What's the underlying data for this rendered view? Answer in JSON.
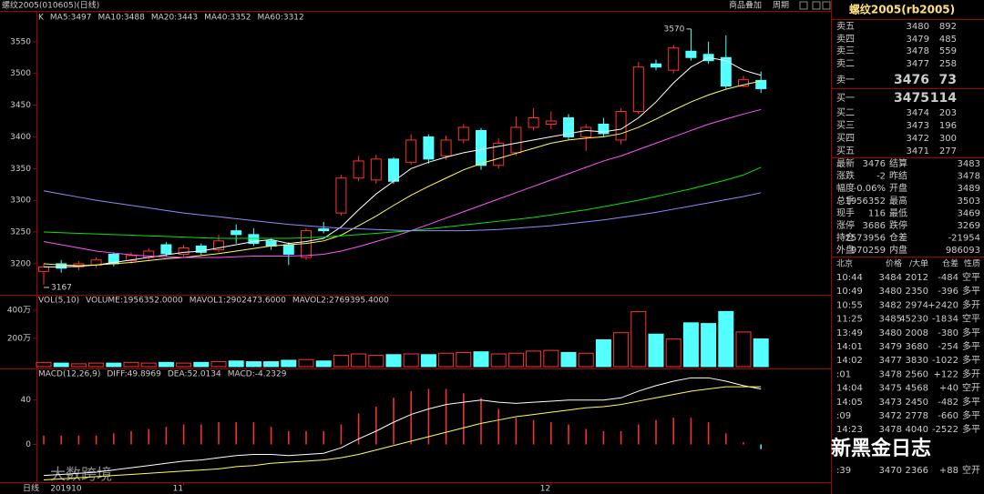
{
  "chart_data": [
    {
      "type": "candlestick",
      "label": "K",
      "categories": [
        null,
        "201910",
        null,
        null,
        null,
        null,
        null,
        null,
        "11",
        null,
        null,
        null,
        null,
        null,
        null,
        null,
        null,
        null,
        null,
        null,
        null,
        null,
        null,
        null,
        null,
        null,
        null,
        null,
        null,
        "12",
        null,
        null,
        null,
        null,
        null,
        null,
        null,
        null,
        null,
        null,
        null,
        null
      ],
      "open": [
        3188,
        3200,
        3195,
        3198,
        3215,
        3205,
        3210,
        3230,
        3215,
        3228,
        3222,
        3252,
        3246,
        3236,
        3230,
        3210,
        3255,
        3280,
        3335,
        3332,
        3365,
        3360,
        3400,
        3370,
        3395,
        3410,
        3355,
        3375,
        3415,
        3420,
        3430,
        3400,
        3420,
        3395,
        3440,
        3515,
        3505,
        3535,
        3530,
        3525,
        3480,
        3489
      ],
      "high": [
        3200,
        3206,
        3204,
        3210,
        3218,
        3218,
        3224,
        3234,
        3230,
        3232,
        3246,
        3262,
        3256,
        3240,
        3234,
        3256,
        3266,
        3340,
        3370,
        3372,
        3368,
        3404,
        3404,
        3402,
        3420,
        3414,
        3398,
        3432,
        3445,
        3440,
        3436,
        3420,
        3430,
        3445,
        3518,
        3522,
        3545,
        3570,
        3550,
        3560,
        3496,
        3503
      ],
      "low": [
        3167,
        3186,
        3190,
        3194,
        3196,
        3200,
        3206,
        3212,
        3210,
        3214,
        3218,
        3232,
        3228,
        3222,
        3198,
        3206,
        3248,
        3276,
        3330,
        3326,
        3326,
        3356,
        3358,
        3364,
        3390,
        3348,
        3350,
        3370,
        3410,
        3412,
        3396,
        3378,
        3400,
        3388,
        3436,
        3505,
        3500,
        3520,
        3515,
        3476,
        3478,
        3469
      ],
      "close": [
        3195,
        3193,
        3200,
        3206,
        3200,
        3213,
        3220,
        3216,
        3225,
        3218,
        3236,
        3246,
        3232,
        3228,
        3215,
        3252,
        3252,
        3335,
        3362,
        3365,
        3330,
        3395,
        3365,
        3395,
        3415,
        3355,
        3390,
        3415,
        3430,
        3425,
        3400,
        3415,
        3405,
        3440,
        3510,
        3510,
        3540,
        3525,
        3520,
        3480,
        3490,
        3476
      ],
      "up_color": "#ff3232",
      "down_color": "#54ffff",
      "ylim": [
        3154,
        3587
      ],
      "yticks": [
        3200,
        3250,
        3300,
        3350,
        3400,
        3450,
        3500,
        3550
      ],
      "series": [
        {
          "name": "MA5:3497",
          "color": "#ffffff",
          "values": [
            3195,
            3195,
            3196,
            3198,
            3202,
            3206,
            3210,
            3214,
            3218,
            3220,
            3225,
            3230,
            3235,
            3238,
            3232,
            3235,
            3240,
            3258,
            3285,
            3310,
            3330,
            3350,
            3360,
            3368,
            3375,
            3380,
            3385,
            3390,
            3395,
            3400,
            3405,
            3410,
            3408,
            3412,
            3430,
            3455,
            3485,
            3510,
            3525,
            3520,
            3505,
            3497
          ]
        },
        {
          "name": "MA10:3488",
          "color": "#ffff54",
          "values": [
            3200,
            3198,
            3197,
            3198,
            3200,
            3202,
            3205,
            3208,
            3210,
            3213,
            3216,
            3220,
            3224,
            3228,
            3230,
            3232,
            3236,
            3245,
            3260,
            3275,
            3292,
            3308,
            3322,
            3335,
            3348,
            3358,
            3366,
            3374,
            3382,
            3390,
            3395,
            3398,
            3400,
            3405,
            3415,
            3428,
            3442,
            3455,
            3466,
            3475,
            3482,
            3488
          ]
        },
        {
          "name": "MA20:3443",
          "color": "#ff54ff",
          "values": [
            3235,
            3230,
            3225,
            3220,
            3217,
            3214,
            3212,
            3211,
            3210,
            3210,
            3210,
            3211,
            3212,
            3212,
            3212,
            3213,
            3215,
            3220,
            3227,
            3235,
            3243,
            3252,
            3262,
            3272,
            3282,
            3292,
            3302,
            3312,
            3322,
            3332,
            3342,
            3352,
            3362,
            3370,
            3380,
            3390,
            3400,
            3410,
            3420,
            3428,
            3436,
            3443
          ]
        },
        {
          "name": "MA40:3352",
          "color": "#00e600",
          "values": [
            3250,
            3249,
            3248,
            3247,
            3246,
            3245,
            3244,
            3243,
            3242,
            3241,
            3240,
            3240,
            3240,
            3240,
            3240,
            3241,
            3242,
            3244,
            3246,
            3248,
            3250,
            3252,
            3255,
            3258,
            3261,
            3264,
            3267,
            3270,
            3273,
            3277,
            3281,
            3285,
            3290,
            3295,
            3300,
            3306,
            3312,
            3318,
            3325,
            3332,
            3340,
            3352
          ]
        },
        {
          "name": "MA60:3312",
          "color": "#8c8cff",
          "values": [
            3315,
            3310,
            3305,
            3300,
            3296,
            3292,
            3288,
            3284,
            3280,
            3277,
            3274,
            3271,
            3268,
            3265,
            3262,
            3260,
            3258,
            3256,
            3255,
            3254,
            3253,
            3252,
            3252,
            3252,
            3252,
            3253,
            3254,
            3256,
            3258,
            3260,
            3263,
            3266,
            3269,
            3273,
            3277,
            3281,
            3286,
            3291,
            3296,
            3301,
            3306,
            3312
          ]
        }
      ]
    },
    {
      "type": "bar",
      "label": "VOL(5,10)",
      "legend": [
        "VOLUME:1956352.0000",
        "MAVOL1:2902473.6000",
        "MAVOL2:2769395.4000"
      ],
      "legend_color": "#dddddd",
      "values": [
        30,
        25,
        20,
        25,
        25,
        30,
        25,
        30,
        25,
        30,
        35,
        40,
        35,
        35,
        45,
        50,
        40,
        80,
        90,
        80,
        85,
        90,
        85,
        95,
        100,
        105,
        90,
        95,
        110,
        115,
        100,
        95,
        190,
        240,
        390,
        230,
        195,
        310,
        305,
        390,
        245,
        196
      ],
      "ylim": [
        0,
        489
      ],
      "yticks": [
        {
          "value": 200,
          "label": "200万"
        },
        {
          "value": 400,
          "label": "400万"
        }
      ]
    },
    {
      "type": "macd",
      "label": "MACD(12,26,9)",
      "ylim": [
        -34,
        66
      ],
      "yticks": [
        0,
        40
      ],
      "series": [
        {
          "name": "DIFF:49.8969",
          "color": "#ffffff",
          "values": [
            -28,
            -27,
            -26,
            -25,
            -23,
            -21,
            -19,
            -17,
            -15,
            -14,
            -12,
            -10,
            -9,
            -9,
            -10,
            -9,
            -8,
            -3,
            5,
            12,
            20,
            27,
            32,
            36,
            38,
            40,
            38,
            37,
            38,
            39,
            40,
            40,
            40,
            42,
            48,
            53,
            57,
            60,
            60,
            57,
            53,
            49.8969
          ]
        },
        {
          "name": "DEA:52.0134",
          "color": "#ffff54",
          "values": [
            -32,
            -31,
            -30,
            -29,
            -28,
            -27,
            -26,
            -25,
            -24,
            -23,
            -22,
            -20,
            -19,
            -17,
            -16,
            -15,
            -14,
            -12,
            -9,
            -5,
            -1,
            3,
            7,
            11,
            15,
            19,
            22,
            25,
            27,
            29,
            31,
            33,
            34,
            36,
            39,
            42,
            45,
            48,
            50,
            52,
            52,
            52.0134
          ]
        }
      ],
      "histogram": {
        "name": "MACD:-4.2329",
        "color": "#ff54ff",
        "values": [
          8,
          8,
          8,
          8,
          10,
          12,
          14,
          16,
          18,
          18,
          20,
          20,
          20,
          16,
          12,
          12,
          12,
          18,
          28,
          34,
          42,
          48,
          50,
          50,
          46,
          42,
          32,
          24,
          22,
          20,
          18,
          14,
          12,
          12,
          18,
          22,
          24,
          24,
          20,
          10,
          2,
          -4.2329
        ]
      }
    }
  ],
  "window": {
    "title": "螺纹2005(010605)(日线)",
    "buttons": [
      "商品叠加",
      "周期"
    ],
    "period_tab": "日线"
  },
  "quote": {
    "title": "螺纹2005(rb2005)",
    "asks": [
      [
        "卖五",
        "3480",
        "892"
      ],
      [
        "卖四",
        "3479",
        "485"
      ],
      [
        "卖三",
        "3478",
        "559"
      ],
      [
        "卖二",
        "3477",
        "258"
      ],
      [
        "卖一",
        "3476",
        "73"
      ]
    ],
    "bids": [
      [
        "买一",
        "3475",
        "114"
      ],
      [
        "买二",
        "3474",
        "203"
      ],
      [
        "买三",
        "3473",
        "196"
      ],
      [
        "买四",
        "3472",
        "300"
      ],
      [
        "买五",
        "3471",
        "277"
      ]
    ],
    "stats": [
      [
        "最新",
        "3476",
        "结算",
        "3483"
      ],
      [
        "涨跌",
        "-2",
        "昨结",
        "3478"
      ],
      [
        "幅度",
        "-0.06%",
        "开盘",
        "3489"
      ],
      [
        "总手",
        "1956352",
        "最高",
        "3503"
      ],
      [
        "现手",
        "116",
        "最低",
        "3469"
      ],
      [
        "涨停",
        "3686",
        "跌停",
        "3269"
      ],
      [
        "持仓",
        "2573956",
        "仓差",
        "-21954"
      ],
      [
        "外盘",
        "970259",
        "内盘",
        "986093"
      ]
    ],
    "trades_header": [
      "北京",
      "价格",
      "/大单",
      "仓差",
      "性质"
    ],
    "trades": [
      [
        "10:44",
        "3484",
        "2012",
        "-484",
        "空平"
      ],
      [
        "10:49",
        "3480",
        "2350",
        "-396",
        "多平"
      ],
      [
        "10:55",
        "3482",
        "2974",
        "+2420",
        "多开"
      ],
      [
        "11:25",
        "3485",
        "45230",
        "-1834",
        "空平"
      ],
      [
        "13:49",
        "3480",
        "2008",
        "-380",
        "多平"
      ],
      [
        "14:01",
        "3479",
        "3680",
        "-254",
        "多平"
      ],
      [
        "14:02",
        "3477",
        "3830",
        "-1022",
        "多平"
      ],
      [
        ":01",
        "3478",
        "2560",
        "+122",
        "多开"
      ],
      [
        "14:04",
        "3475",
        "4568",
        "+40",
        "空开"
      ],
      [
        "14:05",
        "3473",
        "2450",
        "-482",
        "多平"
      ],
      [
        ":09",
        "3472",
        "2778",
        "-660",
        "多平"
      ],
      [
        "14:23",
        "3478",
        "4040",
        "-2522",
        "多平"
      ],
      [
        ":39",
        "3470",
        "2366",
        "+88",
        "空开"
      ]
    ]
  },
  "watermarks": [
    "新黑金日志",
    "大数跨境"
  ]
}
